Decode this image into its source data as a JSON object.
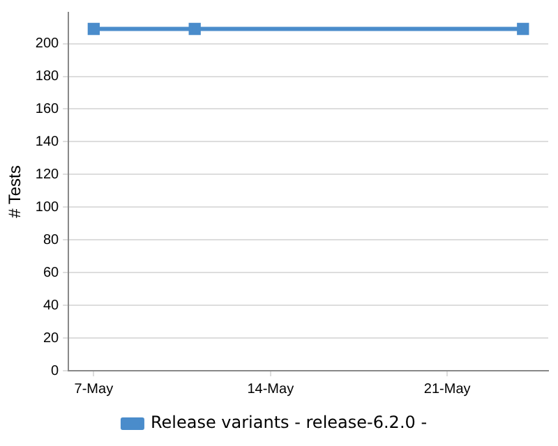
{
  "chart_data": {
    "type": "line",
    "ylabel": "# Tests",
    "x": [
      "--05-07",
      "--05-11",
      "--05-24"
    ],
    "series": [
      {
        "name": "Release variants - release-6.2.0 -",
        "color": "#4a8ccb",
        "values": [
          209,
          209,
          209
        ]
      }
    ],
    "xlim": [
      "--05-06",
      "--05-25"
    ],
    "xticks": [
      {
        "value": "--05-07",
        "label": "7-May"
      },
      {
        "value": "--05-14",
        "label": "14-May"
      },
      {
        "value": "--05-21",
        "label": "21-May"
      }
    ],
    "ylim": [
      0,
      219
    ],
    "yticks": [
      0,
      20,
      40,
      60,
      80,
      100,
      120,
      140,
      160,
      180,
      200
    ],
    "grid": "y",
    "legend": "bottom",
    "marker": "square",
    "line_style": "solid"
  }
}
